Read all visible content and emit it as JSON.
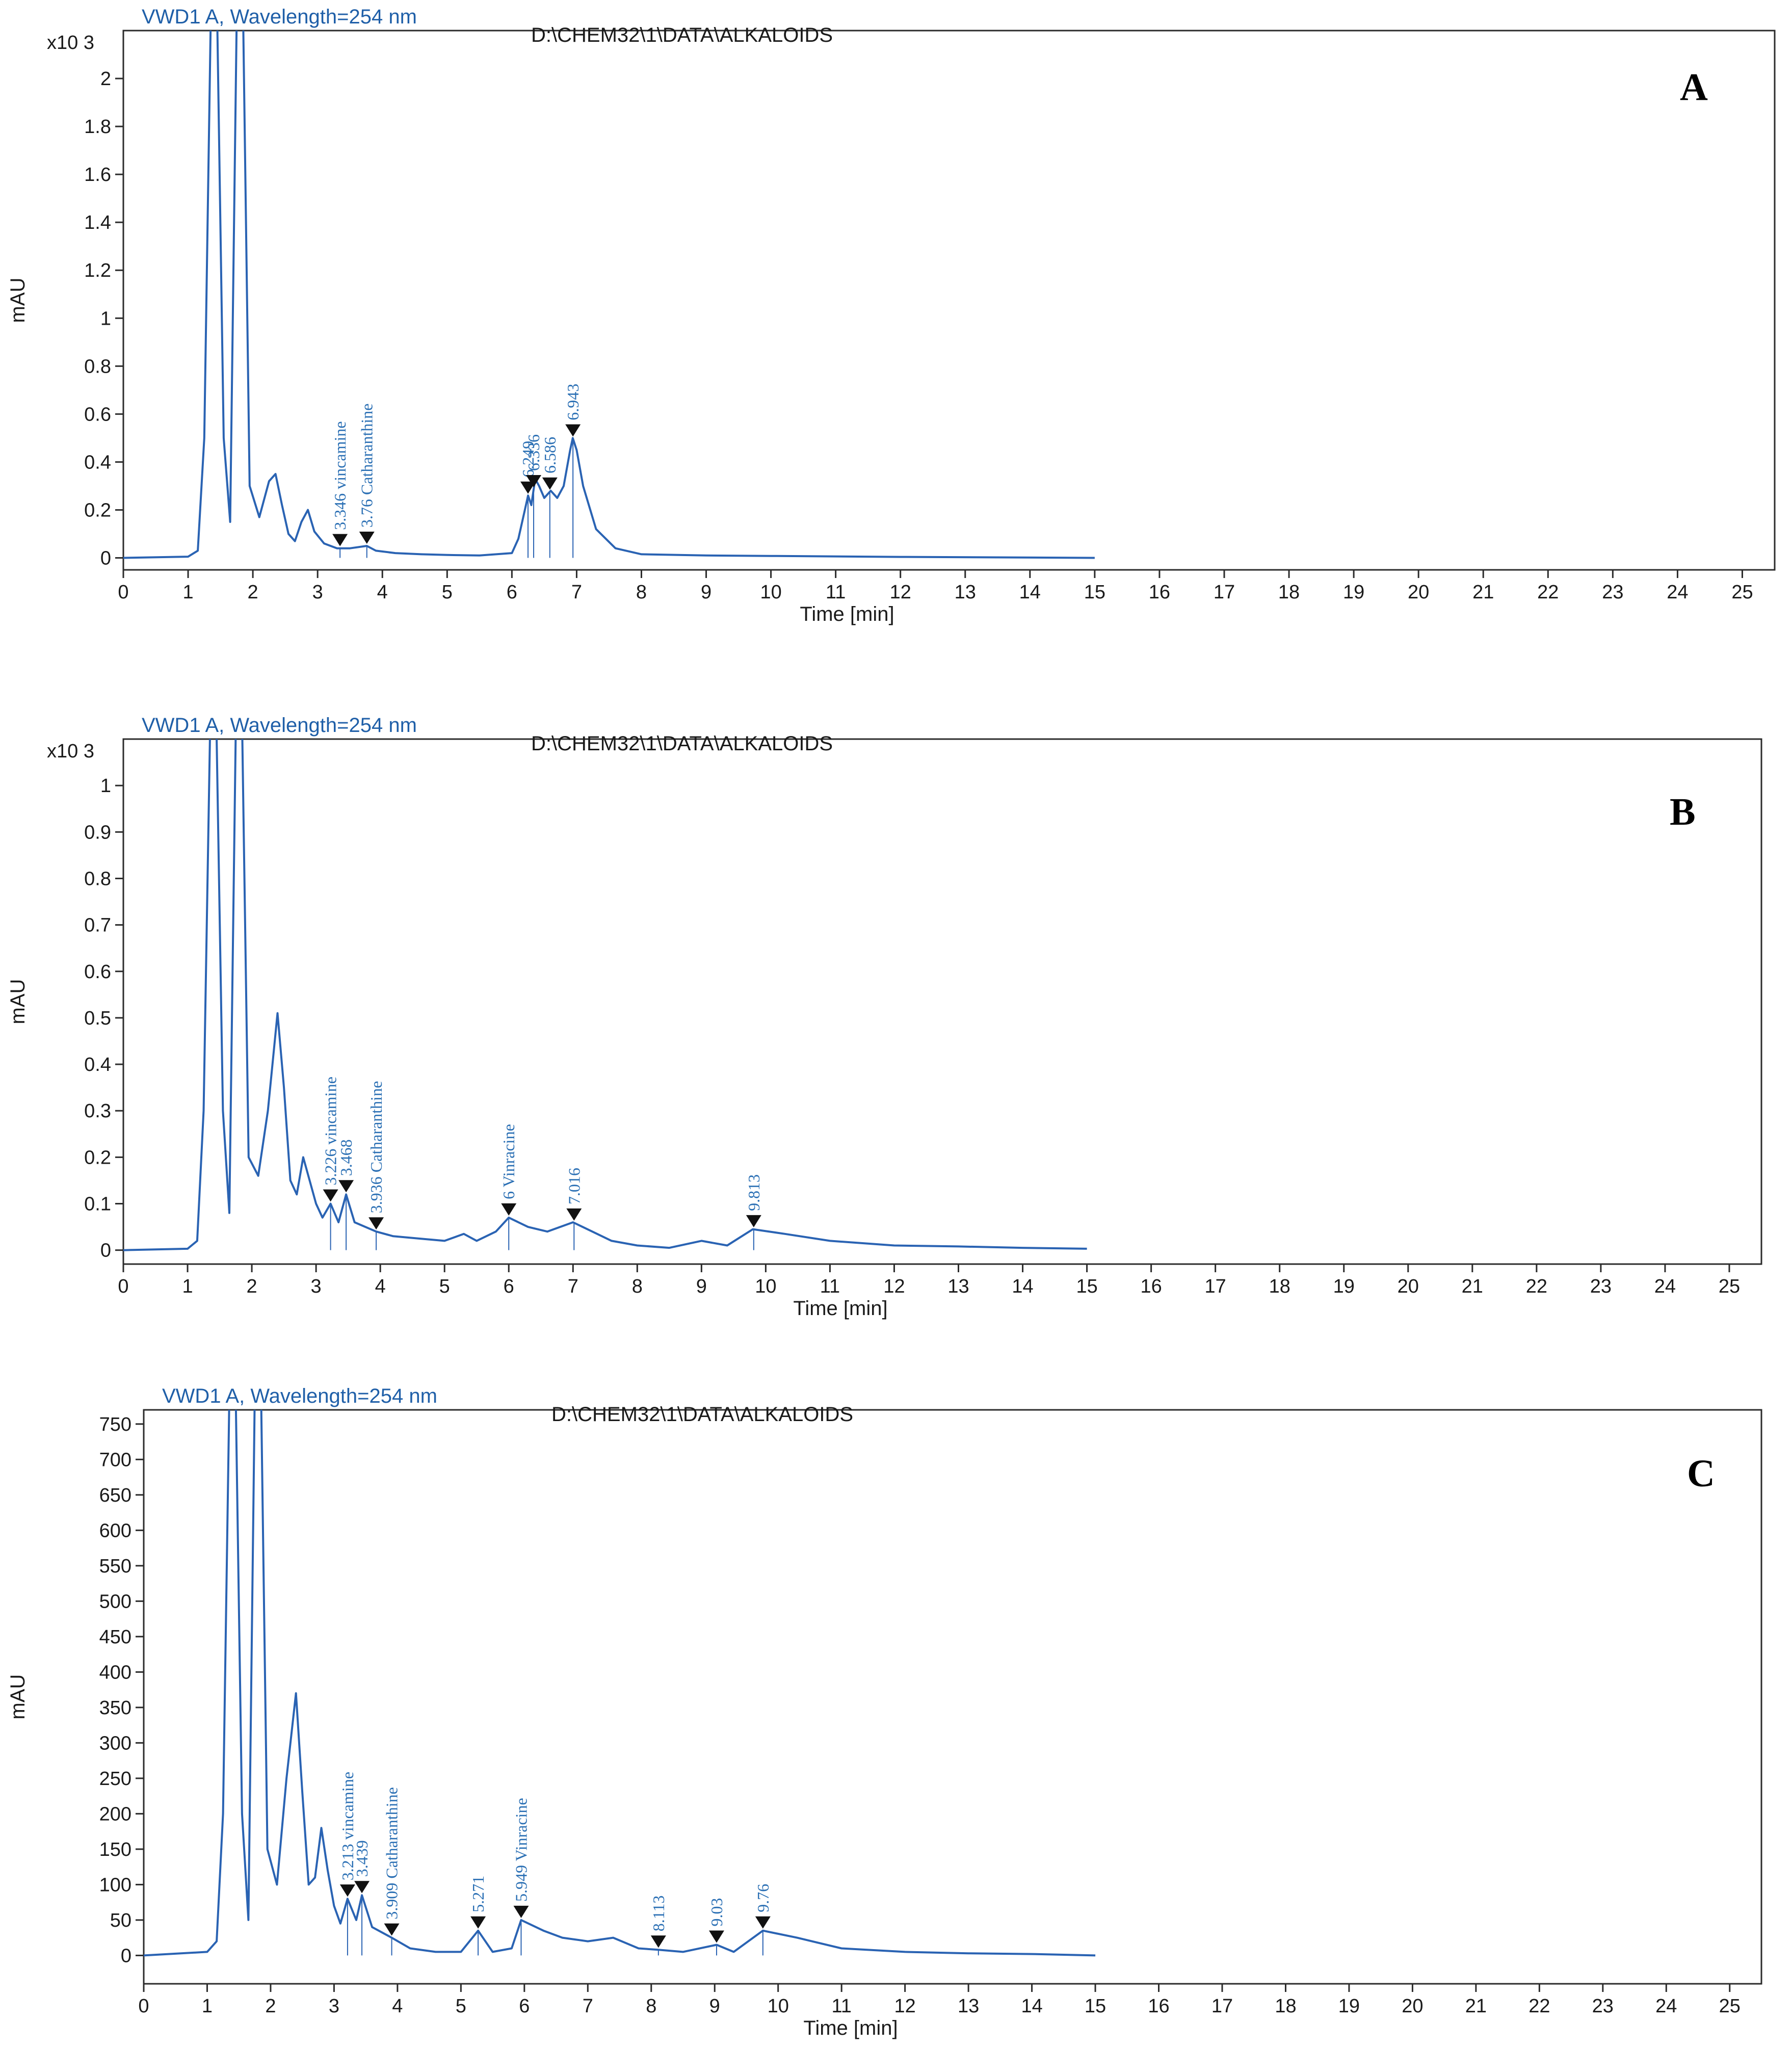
{
  "chart_data": [
    {
      "type": "line",
      "panel_label": "A",
      "signal": "VWD1 A, Wavelength=254 nm",
      "file": "D:\\CHEM32\\1\\DATA\\ALKALOIDS",
      "xlabel": "Time [min]",
      "ylabel": "mAU",
      "y_multiplier": "x10 3",
      "xlim": [
        0,
        25.5
      ],
      "ylim": [
        -0.05,
        2.2
      ],
      "x_ticks": [
        "0",
        "1",
        "2",
        "3",
        "4",
        "5",
        "6",
        "7",
        "8",
        "9",
        "10",
        "11",
        "12",
        "13",
        "14",
        "15",
        "16",
        "17",
        "18",
        "19",
        "20",
        "21",
        "22",
        "23",
        "24",
        "25"
      ],
      "y_ticks": [
        "0",
        "0.2",
        "0.4",
        "0.6",
        "0.8",
        "1",
        "1.2",
        "1.4",
        "1.6",
        "1.8",
        "2"
      ],
      "y_tick_values": [
        0,
        0.2,
        0.4,
        0.6,
        0.8,
        1,
        1.2,
        1.4,
        1.6,
        1.8,
        2
      ],
      "x": [
        0,
        1.0,
        1.15,
        1.25,
        1.35,
        1.45,
        1.55,
        1.65,
        1.75,
        1.85,
        1.95,
        2.1,
        2.25,
        2.35,
        2.45,
        2.55,
        2.65,
        2.75,
        2.85,
        2.95,
        3.1,
        3.3,
        3.5,
        3.76,
        3.9,
        4.2,
        4.6,
        5.0,
        5.5,
        6.0,
        6.1,
        6.2,
        6.25,
        6.3,
        6.36,
        6.42,
        6.5,
        6.6,
        6.7,
        6.8,
        6.9,
        6.94,
        7.0,
        7.1,
        7.3,
        7.6,
        8.0,
        9.0,
        10,
        12,
        15
      ],
      "y": [
        0,
        0.005,
        0.03,
        0.5,
        2.25,
        2.25,
        0.5,
        0.15,
        2.25,
        2.25,
        0.3,
        0.17,
        0.32,
        0.35,
        0.22,
        0.1,
        0.07,
        0.15,
        0.2,
        0.11,
        0.06,
        0.04,
        0.04,
        0.05,
        0.03,
        0.02,
        0.015,
        0.012,
        0.01,
        0.02,
        0.08,
        0.2,
        0.26,
        0.22,
        0.33,
        0.3,
        0.25,
        0.28,
        0.25,
        0.3,
        0.45,
        0.5,
        0.45,
        0.3,
        0.12,
        0.04,
        0.015,
        0.01,
        0.008,
        0.004,
        0.0
      ],
      "peaks": [
        {
          "rt": 3.346,
          "label": "3.346 vincamine"
        },
        {
          "rt": 3.76,
          "label": "3.76 Catharanthine"
        },
        {
          "rt": 6.249,
          "label": "6.249"
        },
        {
          "rt": 6.336,
          "label": "6.336"
        },
        {
          "rt": 6.586,
          "label": "6.586"
        },
        {
          "rt": 6.943,
          "label": "6.943"
        }
      ]
    },
    {
      "type": "line",
      "panel_label": "B",
      "signal": "VWD1 A, Wavelength=254 nm",
      "file": "D:\\CHEM32\\1\\DATA\\ALKALOIDS",
      "xlabel": "Time [min]",
      "ylabel": "mAU",
      "y_multiplier": "x10 3",
      "xlim": [
        0,
        25.5
      ],
      "ylim": [
        -0.03,
        1.1
      ],
      "x_ticks": [
        "0",
        "1",
        "2",
        "3",
        "4",
        "5",
        "6",
        "7",
        "8",
        "9",
        "10",
        "11",
        "12",
        "13",
        "14",
        "15",
        "16",
        "17",
        "18",
        "19",
        "20",
        "21",
        "22",
        "23",
        "24",
        "25"
      ],
      "y_ticks": [
        "0",
        "0.1",
        "0.2",
        "0.3",
        "0.4",
        "0.5",
        "0.6",
        "0.7",
        "0.8",
        "0.9",
        "1"
      ],
      "y_tick_values": [
        0,
        0.1,
        0.2,
        0.3,
        0.4,
        0.5,
        0.6,
        0.7,
        0.8,
        0.9,
        1
      ],
      "x": [
        0,
        1.0,
        1.15,
        1.25,
        1.35,
        1.45,
        1.55,
        1.65,
        1.75,
        1.85,
        1.95,
        2.1,
        2.25,
        2.4,
        2.5,
        2.6,
        2.7,
        2.8,
        2.9,
        3.0,
        3.1,
        3.226,
        3.35,
        3.468,
        3.6,
        3.936,
        4.2,
        4.6,
        5.0,
        5.3,
        5.5,
        5.8,
        6.0,
        6.3,
        6.6,
        7.0,
        7.3,
        7.6,
        8.0,
        8.5,
        9.0,
        9.4,
        9.8,
        10.3,
        11,
        12,
        13,
        14,
        15
      ],
      "y": [
        0,
        0.003,
        0.02,
        0.3,
        1.12,
        1.12,
        0.3,
        0.08,
        1.12,
        1.12,
        0.2,
        0.16,
        0.3,
        0.51,
        0.35,
        0.15,
        0.12,
        0.2,
        0.15,
        0.1,
        0.07,
        0.1,
        0.06,
        0.12,
        0.06,
        0.04,
        0.03,
        0.025,
        0.02,
        0.035,
        0.02,
        0.04,
        0.07,
        0.05,
        0.04,
        0.06,
        0.04,
        0.02,
        0.01,
        0.005,
        0.02,
        0.01,
        0.045,
        0.035,
        0.02,
        0.01,
        0.008,
        0.005,
        0.003
      ],
      "peaks": [
        {
          "rt": 3.226,
          "label": "3.226 vincamine"
        },
        {
          "rt": 3.468,
          "label": "3.468"
        },
        {
          "rt": 3.936,
          "label": "3.936 Catharanthine"
        },
        {
          "rt": 6.0,
          "label": "6 Vinracine"
        },
        {
          "rt": 7.016,
          "label": "7.016"
        },
        {
          "rt": 9.813,
          "label": "9.813"
        }
      ]
    },
    {
      "type": "line",
      "panel_label": "C",
      "signal": "VWD1 A, Wavelength=254 nm",
      "file": "D:\\CHEM32\\1\\DATA\\ALKALOIDS",
      "xlabel": "Time [min]",
      "ylabel": "mAU",
      "y_multiplier": "",
      "xlim": [
        0,
        25.5
      ],
      "ylim": [
        -40,
        770
      ],
      "x_ticks": [
        "0",
        "1",
        "2",
        "3",
        "4",
        "5",
        "6",
        "7",
        "8",
        "9",
        "10",
        "11",
        "12",
        "13",
        "14",
        "15",
        "16",
        "17",
        "18",
        "19",
        "20",
        "21",
        "22",
        "23",
        "24",
        "25"
      ],
      "y_ticks": [
        "0",
        "50",
        "100",
        "150",
        "200",
        "250",
        "300",
        "350",
        "400",
        "450",
        "500",
        "550",
        "600",
        "650",
        "700",
        "750"
      ],
      "y_tick_values": [
        0,
        50,
        100,
        150,
        200,
        250,
        300,
        350,
        400,
        450,
        500,
        550,
        600,
        650,
        700,
        750
      ],
      "x": [
        0,
        1.0,
        1.15,
        1.25,
        1.35,
        1.45,
        1.55,
        1.65,
        1.75,
        1.85,
        1.95,
        2.1,
        2.25,
        2.4,
        2.5,
        2.6,
        2.7,
        2.8,
        2.9,
        3.0,
        3.1,
        3.213,
        3.35,
        3.439,
        3.6,
        3.909,
        4.2,
        4.6,
        5.0,
        5.271,
        5.5,
        5.8,
        5.949,
        6.3,
        6.6,
        7.0,
        7.4,
        7.8,
        8.113,
        8.5,
        9.03,
        9.3,
        9.76,
        10.3,
        11,
        12,
        13,
        14,
        15
      ],
      "y": [
        0,
        5,
        20,
        200,
        790,
        790,
        200,
        50,
        790,
        790,
        150,
        100,
        250,
        370,
        230,
        100,
        110,
        180,
        120,
        70,
        45,
        80,
        50,
        85,
        40,
        25,
        10,
        5,
        5,
        35,
        5,
        10,
        50,
        35,
        25,
        20,
        25,
        10,
        8,
        5,
        15,
        5,
        35,
        25,
        10,
        5,
        3,
        2,
        0
      ],
      "peaks": [
        {
          "rt": 3.213,
          "label": "3.213 vincamine"
        },
        {
          "rt": 3.439,
          "label": "3.439"
        },
        {
          "rt": 3.909,
          "label": "3.909 Catharanthine"
        },
        {
          "rt": 5.271,
          "label": "5.271"
        },
        {
          "rt": 5.949,
          "label": "5.949 Vinracine"
        },
        {
          "rt": 8.113,
          "label": "8.113"
        },
        {
          "rt": 9.03,
          "label": "9.03"
        },
        {
          "rt": 9.76,
          "label": "9.76"
        }
      ]
    }
  ]
}
